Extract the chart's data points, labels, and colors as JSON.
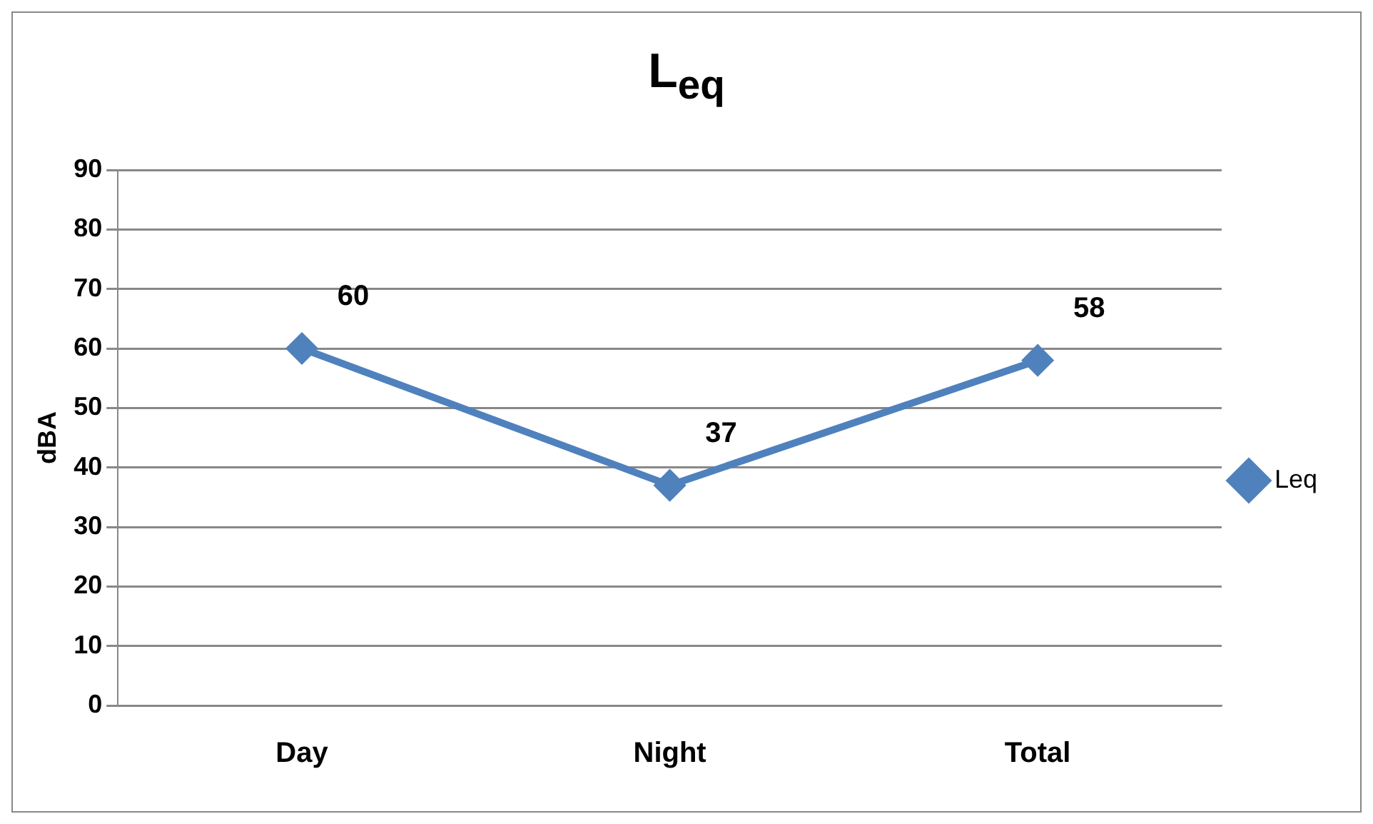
{
  "chart_data": {
    "type": "line",
    "title": "L$_{eq}$",
    "ylabel": "dBA",
    "categories": [
      "Day",
      "Night",
      "Total"
    ],
    "series": [
      {
        "name": "Leq",
        "color": "#4f81bd",
        "values": [
          60,
          37,
          58
        ]
      }
    ],
    "ylim": [
      0,
      90
    ],
    "yticks": [
      0,
      10,
      20,
      30,
      40,
      50,
      60,
      70,
      80,
      90
    ],
    "grid": "y",
    "legend": "right",
    "marker": "diamond",
    "line_style": "solid",
    "data_labels": true
  }
}
